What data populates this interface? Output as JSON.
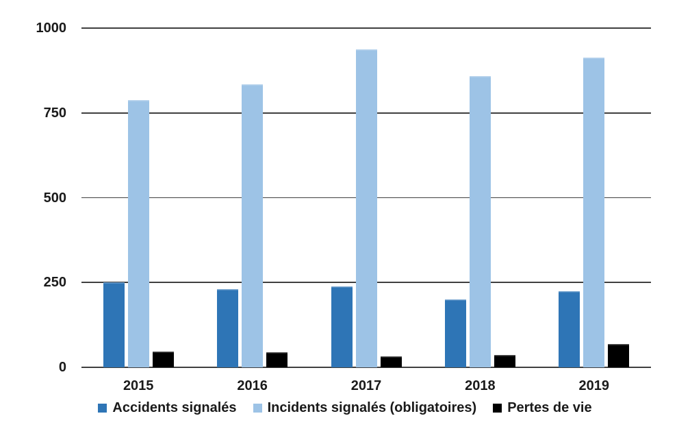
{
  "figure": {
    "background_color": "#ffffff",
    "gridline_color": "#3f3f3f",
    "text_color": "#1a1a1a"
  },
  "chart_data": {
    "type": "bar",
    "title": "",
    "xlabel": "",
    "ylabel": "",
    "categories": [
      "2015",
      "2016",
      "2017",
      "2018",
      "2019"
    ],
    "series": [
      {
        "name": "Accidents signalés",
        "color": "#2E75B6",
        "values": [
          250,
          230,
          238,
          200,
          224
        ]
      },
      {
        "name": "Incidents signalés (obligatoires)",
        "color": "#9DC3E6",
        "values": [
          787,
          834,
          937,
          858,
          913
        ]
      },
      {
        "name": "Pertes de vie",
        "color": "#000000",
        "values": [
          47,
          44,
          32,
          37,
          69
        ]
      }
    ],
    "ylim": [
      0,
      1000
    ],
    "yticks": [
      0,
      250,
      500,
      750,
      1000
    ],
    "grid": true,
    "legend_position": "bottom"
  }
}
